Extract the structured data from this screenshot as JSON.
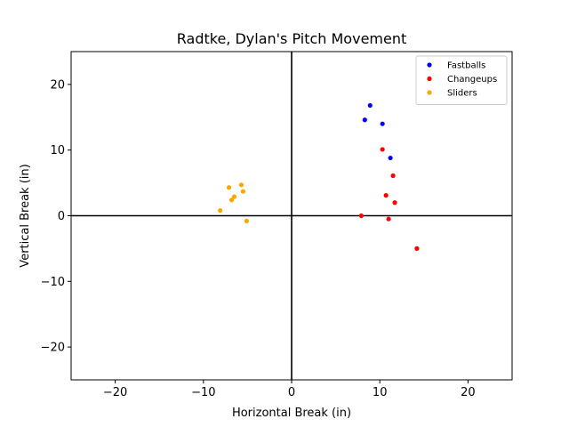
{
  "chart_data": {
    "type": "scatter",
    "title": "Radtke, Dylan's Pitch Movement",
    "xlabel": "Horizontal Break (in)",
    "ylabel": "Vertical Break (in)",
    "xlim": [
      -25,
      25
    ],
    "ylim": [
      -25,
      25
    ],
    "xticks": [
      -20,
      -10,
      0,
      10,
      20
    ],
    "yticks": [
      -20,
      -10,
      0,
      10,
      20
    ],
    "xtick_labels": [
      "−20",
      "−10",
      "0",
      "10",
      "20"
    ],
    "ytick_labels": [
      "−20",
      "−10",
      "0",
      "10",
      "20"
    ],
    "grid": false,
    "zero_lines": true,
    "legend_position": "top-right",
    "series": [
      {
        "name": "Fastballs",
        "color": "#0000ff",
        "points": [
          [
            8.9,
            16.8
          ],
          [
            8.3,
            14.6
          ],
          [
            10.3,
            14.0
          ],
          [
            11.2,
            8.8
          ]
        ]
      },
      {
        "name": "Changeups",
        "color": "#ff0000",
        "points": [
          [
            10.3,
            10.1
          ],
          [
            11.5,
            6.1
          ],
          [
            10.7,
            3.1
          ],
          [
            11.7,
            2.0
          ],
          [
            7.9,
            0.0
          ],
          [
            11.0,
            -0.5
          ],
          [
            14.2,
            -5.0
          ]
        ]
      },
      {
        "name": "Sliders",
        "color": "#ffa500",
        "points": [
          [
            -5.7,
            4.7
          ],
          [
            -7.1,
            4.3
          ],
          [
            -5.5,
            3.7
          ],
          [
            -6.5,
            2.9
          ],
          [
            -6.8,
            2.4
          ],
          [
            -8.1,
            0.8
          ],
          [
            -5.1,
            -0.8
          ]
        ]
      }
    ]
  }
}
